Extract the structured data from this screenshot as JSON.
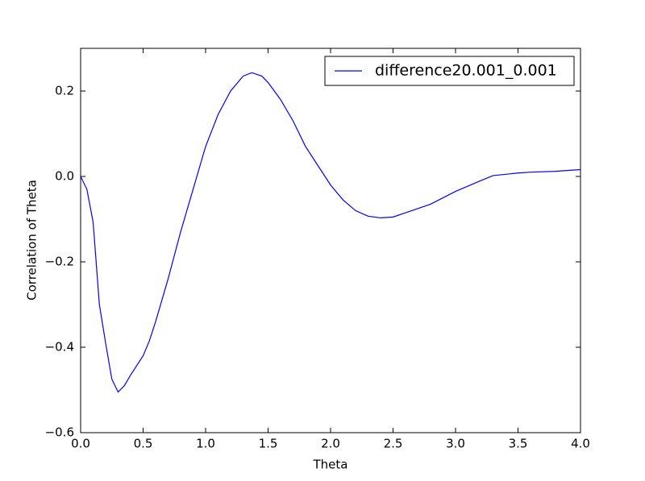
{
  "chart_data": {
    "type": "line",
    "xlabel": "Theta",
    "ylabel": "Correlation of Theta",
    "x": [
      0.0,
      0.05,
      0.1,
      0.15,
      0.2,
      0.25,
      0.3,
      0.35,
      0.4,
      0.5,
      0.55,
      0.6,
      0.7,
      0.8,
      0.9,
      1.0,
      1.1,
      1.2,
      1.3,
      1.37,
      1.45,
      1.5,
      1.6,
      1.7,
      1.8,
      1.9,
      2.0,
      2.1,
      2.2,
      2.3,
      2.4,
      2.5,
      2.6,
      2.8,
      3.0,
      3.2,
      3.3,
      3.5,
      3.6,
      3.8,
      4.0
    ],
    "series": [
      {
        "name": "difference20.001_0.001",
        "color": "#0000ff",
        "values": [
          0.0,
          -0.03,
          -0.107,
          -0.3,
          -0.39,
          -0.475,
          -0.505,
          -0.49,
          -0.465,
          -0.42,
          -0.385,
          -0.34,
          -0.24,
          -0.13,
          -0.03,
          0.07,
          0.145,
          0.2,
          0.235,
          0.243,
          0.235,
          0.22,
          0.18,
          0.13,
          0.07,
          0.025,
          -0.02,
          -0.055,
          -0.08,
          -0.093,
          -0.097,
          -0.095,
          -0.085,
          -0.065,
          -0.035,
          -0.01,
          0.002,
          0.008,
          0.01,
          0.012,
          0.016
        ]
      }
    ],
    "xlim": [
      0,
      4
    ],
    "xticks": [
      {
        "value": 0,
        "label": "0.0"
      },
      {
        "value": 0.5,
        "label": "0.5"
      },
      {
        "value": 1,
        "label": "1.0"
      },
      {
        "value": 1.5,
        "label": "1.5"
      },
      {
        "value": 2,
        "label": "2.0"
      },
      {
        "value": 2.5,
        "label": "2.5"
      },
      {
        "value": 3,
        "label": "3.0"
      },
      {
        "value": 3.5,
        "label": "3.5"
      },
      {
        "value": 4,
        "label": "4.0"
      }
    ],
    "ylim": [
      -0.6,
      0.3
    ],
    "yticks": [
      {
        "value": -0.6,
        "label": "−0.6"
      },
      {
        "value": -0.4,
        "label": "−0.4"
      },
      {
        "value": -0.2,
        "label": "−0.2"
      },
      {
        "value": 0,
        "label": "0.0"
      },
      {
        "value": 0.2,
        "label": "0.2"
      }
    ],
    "legend": "upper right"
  }
}
